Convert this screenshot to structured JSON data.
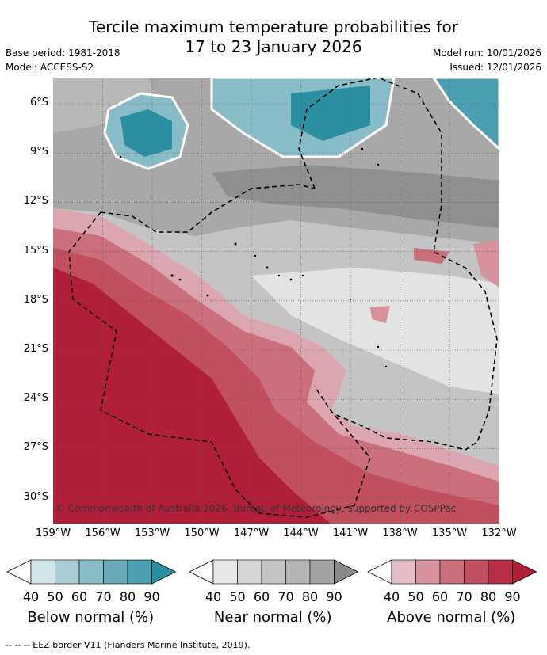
{
  "header": {
    "title_line1": "Tercile maximum temperature probabilities for",
    "title_line2": "17 to 23 January 2026",
    "base_period": "Base period: 1981-2018",
    "model": "Model: ACCESS-S2",
    "model_run": "Model run: 10/01/2026",
    "issued": "Issued: 12/01/2026"
  },
  "map": {
    "lat_labels": [
      "6°S",
      "9°S",
      "12°S",
      "15°S",
      "18°S",
      "21°S",
      "24°S",
      "27°S",
      "30°S"
    ],
    "lon_labels": [
      "159°W",
      "156°W",
      "153°W",
      "150°W",
      "147°W",
      "144°W",
      "141°W",
      "138°W",
      "135°W",
      "132°W"
    ],
    "copyright": "© Commonwealth of Australia 2026, Bureau of Meteorology, supported by COSPPac"
  },
  "legends": [
    {
      "title": "Below normal (%)",
      "ticks": [
        "40",
        "50",
        "60",
        "70",
        "80",
        "90"
      ],
      "colors": [
        "#ffffff",
        "#cfe5ea",
        "#a9cdd4",
        "#88bcc6",
        "#6aaab8",
        "#4aa0b0",
        "#2b8fa2"
      ]
    },
    {
      "title": "Near normal (%)",
      "ticks": [
        "40",
        "50",
        "60",
        "70",
        "80",
        "90"
      ],
      "colors": [
        "#ffffff",
        "#e7e7e7",
        "#d5d5d5",
        "#c4c4c4",
        "#b3b3b3",
        "#a2a2a2",
        "#8a8a8a"
      ]
    },
    {
      "title": "Above normal (%)",
      "ticks": [
        "40",
        "50",
        "60",
        "70",
        "80",
        "90"
      ],
      "colors": [
        "#ffffff",
        "#e6bcc4",
        "#d7939d",
        "#ca6f7b",
        "#c14f60",
        "#b72e46",
        "#b01e3a"
      ]
    }
  ],
  "footer": {
    "eez_note": "--  --  -- EEZ border V11 (Flanders Marine Institute, 2019)."
  }
}
